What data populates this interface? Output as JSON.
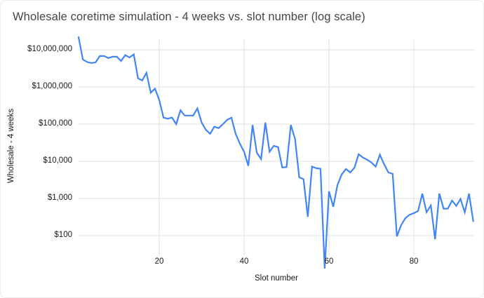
{
  "title": "Wholesale coretime simulation - 4 weeks vs. slot number (log scale)",
  "colors": {
    "line": "#4285f4",
    "grid": "#e0e0e0",
    "title_text": "#464646",
    "label_text": "#1a1a1a"
  },
  "chart_data": {
    "type": "line",
    "title": "Wholesale coretime simulation - 4 weeks vs. slot number (log scale)",
    "xlabel": "Slot number",
    "ylabel": "Wholesale - 4 weeks",
    "y_scale": "log",
    "grid": true,
    "legend_position": "none",
    "ylim": [
      100,
      10000000
    ],
    "y_tick_labels": [
      "$100",
      "$1,000",
      "$10,000",
      "$100,000",
      "$1,000,000",
      "$10,000,000"
    ],
    "y_tick_values": [
      100,
      1000,
      10000,
      100000,
      1000000,
      10000000
    ],
    "x_tick_values": [
      20,
      40,
      60,
      80
    ],
    "x_start_slot": 1,
    "series": [
      {
        "name": "Wholesale - 4 weeks",
        "values": [
          22000000,
          5500000,
          4700000,
          4400000,
          4600000,
          6800000,
          6800000,
          6000000,
          6500000,
          6500000,
          5000000,
          7200000,
          6200000,
          7500000,
          1700000,
          1500000,
          2400000,
          700000,
          900000,
          450000,
          150000,
          140000,
          150000,
          100000,
          235000,
          170000,
          170000,
          170000,
          265000,
          110000,
          70000,
          55000,
          85000,
          78000,
          100000,
          130000,
          150000,
          55000,
          30000,
          18000,
          7500,
          95000,
          17000,
          11500,
          110000,
          18000,
          26000,
          24000,
          6800,
          7000,
          95000,
          40000,
          3700,
          3300,
          320,
          7200,
          6500,
          6300,
          13,
          1550,
          600,
          2300,
          4400,
          6200,
          5000,
          6700,
          15500,
          12600,
          11000,
          9300,
          7200,
          15000,
          8300,
          5000,
          4600,
          95,
          190,
          295,
          365,
          400,
          460,
          1350,
          425,
          650,
          80,
          1350,
          530,
          530,
          875,
          630,
          970,
          425,
          1350,
          245
        ]
      }
    ]
  }
}
